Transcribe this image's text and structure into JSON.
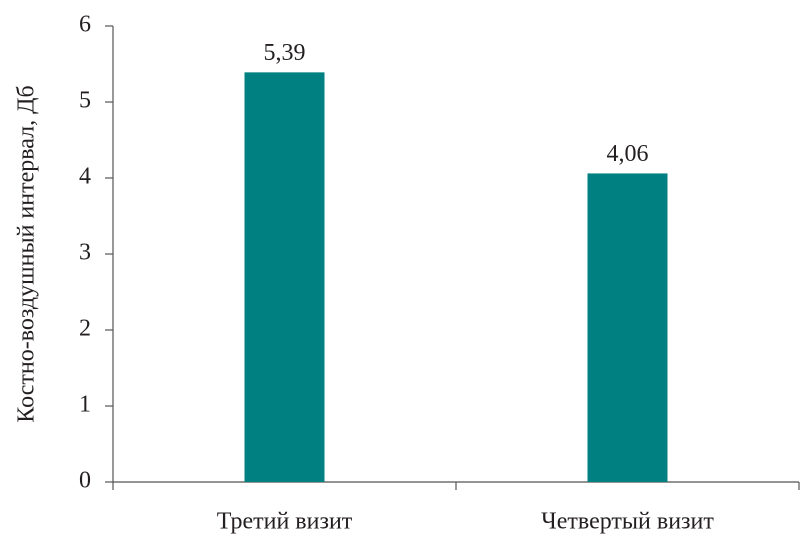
{
  "chart_data": {
    "type": "bar",
    "ylabel": "Костно-воздушный интервал, Дб",
    "categories": [
      "Третий визит",
      "Четвертый визит"
    ],
    "values": [
      5.39,
      4.06
    ],
    "value_labels": [
      "5,39",
      "4,06"
    ],
    "color": "#008080",
    "ylim": [
      0,
      6
    ],
    "yticks": [
      0,
      1,
      2,
      3,
      4,
      5,
      6
    ],
    "grid": false
  }
}
